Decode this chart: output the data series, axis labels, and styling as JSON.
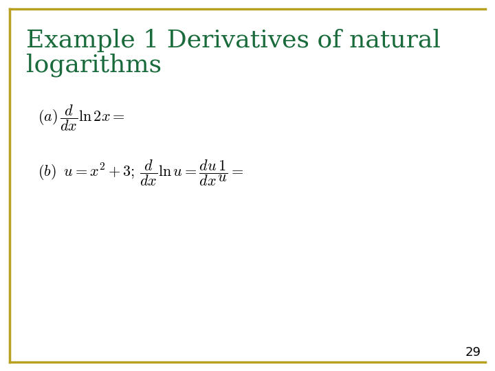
{
  "title_line1": "Example 1 Derivatives of natural",
  "title_line2": "logarithms",
  "title_color": "#1a6b3c",
  "background_color": "#ffffff",
  "border_color": "#b8a020",
  "page_number": "29",
  "text_color": "#000000",
  "formula_color": "#000000",
  "title_fontsize": 26,
  "formula_fontsize": 16,
  "page_num_fontsize": 13
}
